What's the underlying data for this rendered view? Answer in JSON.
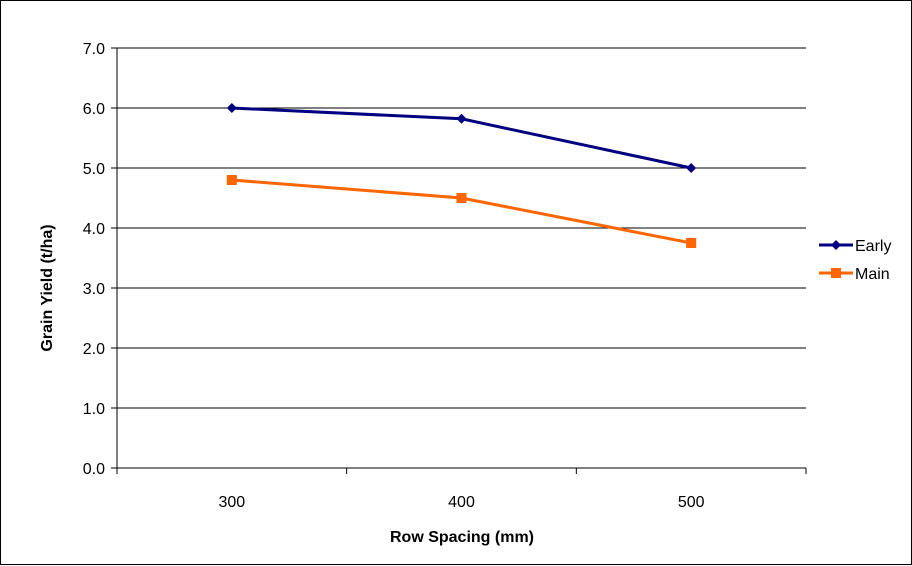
{
  "chart_data": {
    "type": "line",
    "categories": [
      "300",
      "400",
      "500"
    ],
    "series": [
      {
        "name": "Early",
        "values": [
          6.0,
          5.82,
          5.0
        ],
        "color": "#000080",
        "marker": "diamond"
      },
      {
        "name": "Main",
        "values": [
          4.8,
          4.5,
          3.75
        ],
        "color": "#FF6600",
        "marker": "square"
      }
    ],
    "xlabel": "Row Spacing (mm)",
    "ylabel": "Grain Yield (t/ha)",
    "ylim": [
      0,
      7
    ],
    "yticks": [
      "0.0",
      "1.0",
      "2.0",
      "3.0",
      "4.0",
      "5.0",
      "6.0",
      "7.0"
    ],
    "grid": true,
    "legend_position": "right"
  }
}
